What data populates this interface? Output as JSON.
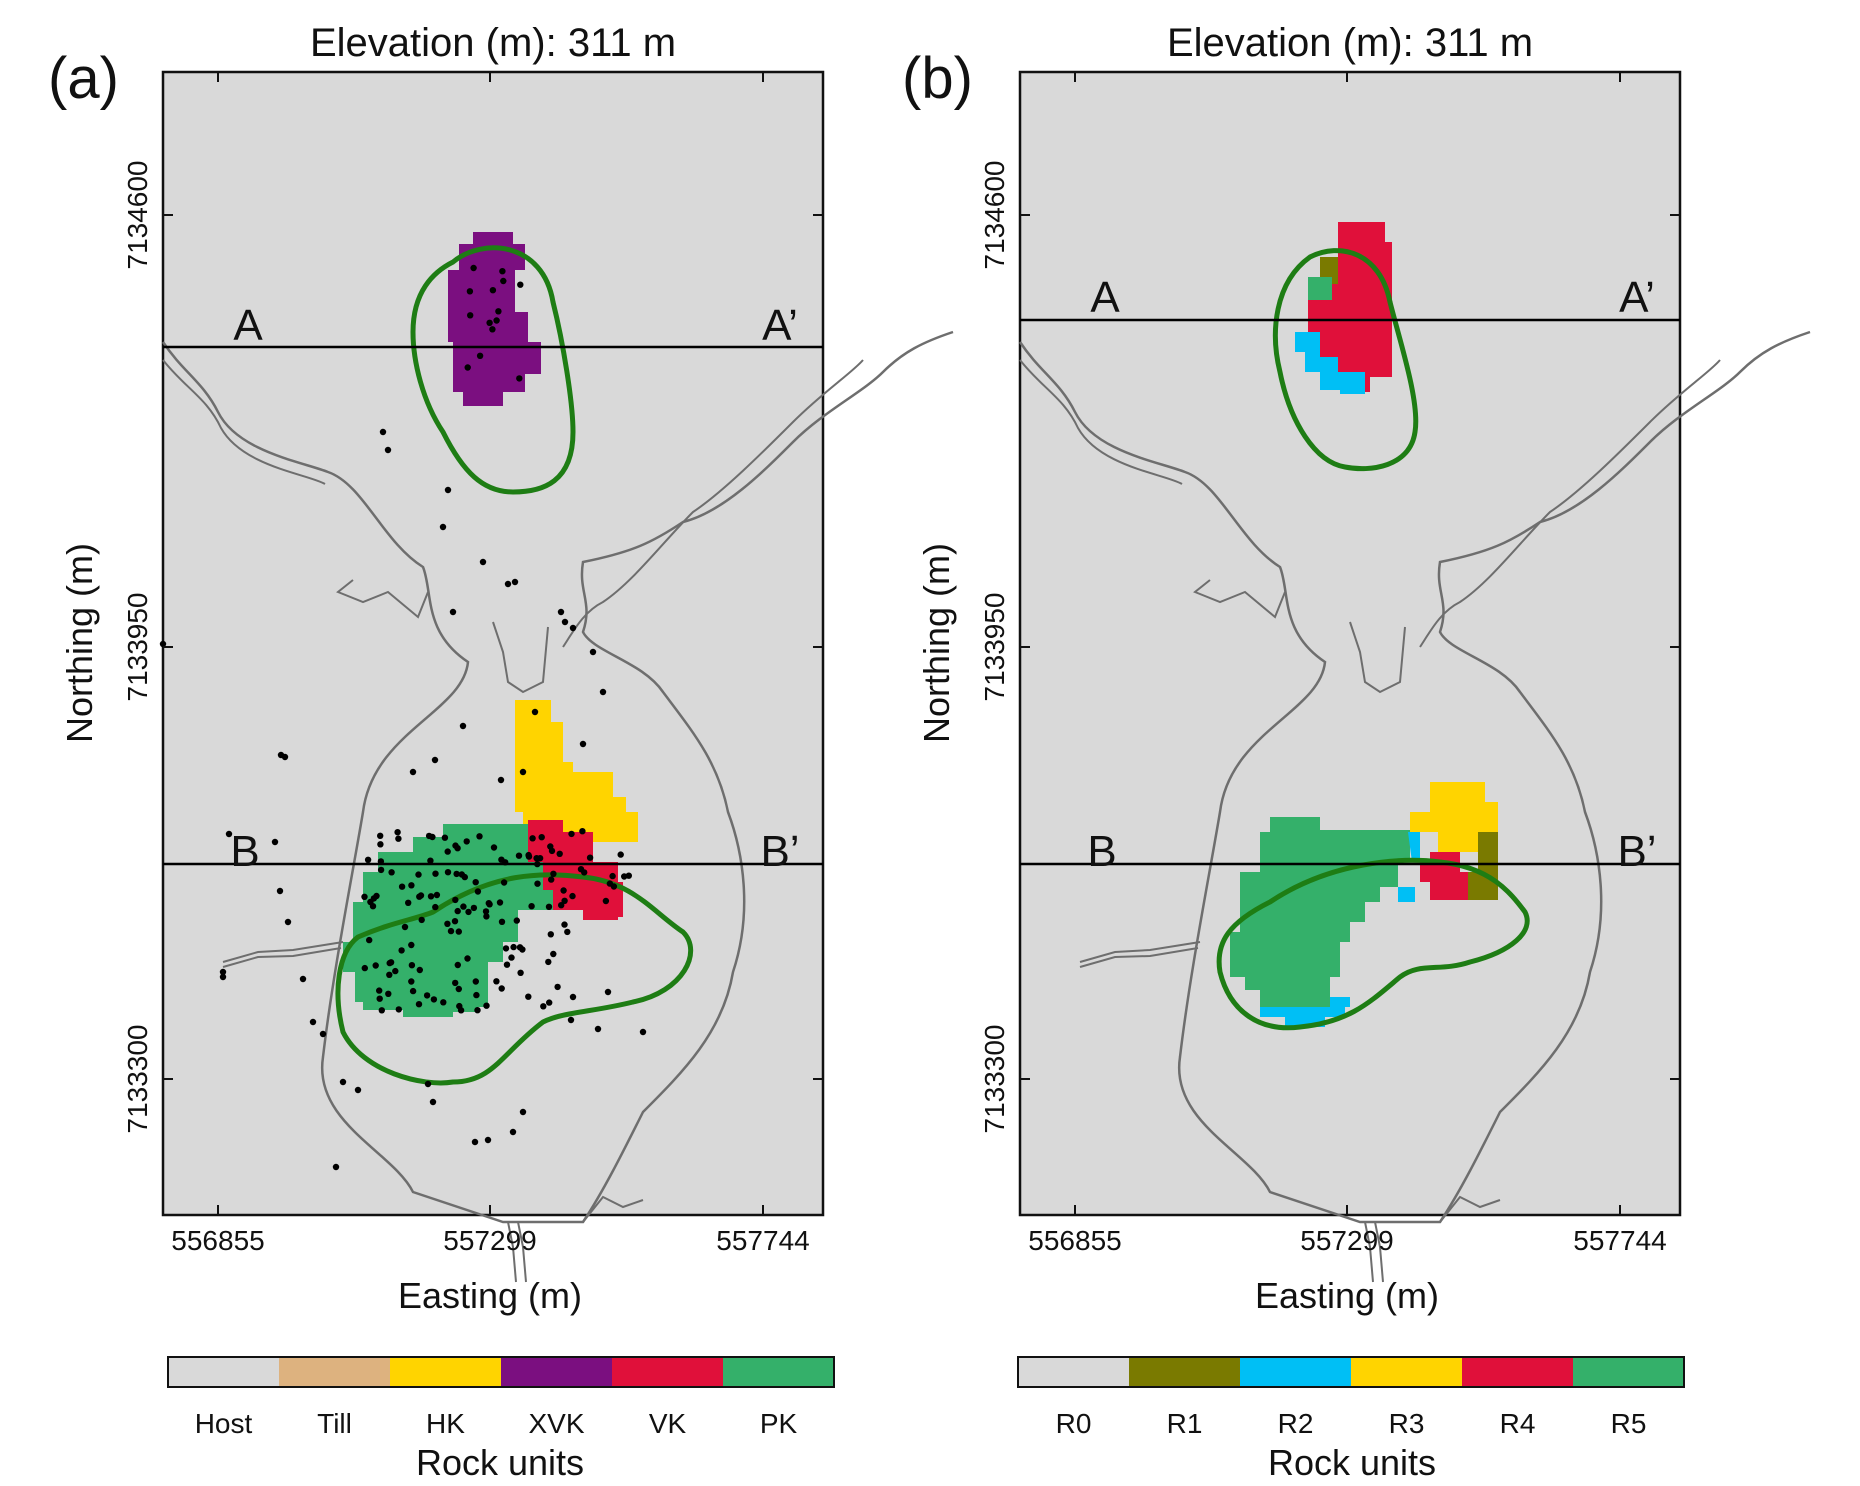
{
  "panels": [
    {
      "id": "a",
      "panel_label": "(a)",
      "title": "Elevation (m): 311 m",
      "xlabel": "Easting (m)",
      "ylabel": "Northing (m)",
      "x_ticks": [
        "556855",
        "557299",
        "557744"
      ],
      "y_ticks": [
        "7134600",
        "7133950",
        "7133300"
      ],
      "section_labels": {
        "a_left": "A",
        "a_right": "A’",
        "b_left": "B",
        "b_right": "B’"
      },
      "legend_title": "Rock units",
      "legend_items": [
        {
          "label": "Host",
          "color": "#d9d9d9"
        },
        {
          "label": "Till",
          "color": "#ddb27f"
        },
        {
          "label": "HK",
          "color": "#ffd400"
        },
        {
          "label": "XVK",
          "color": "#7b0f80"
        },
        {
          "label": "VK",
          "color": "#e0103a"
        },
        {
          "label": "PK",
          "color": "#34b06a"
        }
      ]
    },
    {
      "id": "b",
      "panel_label": "(b)",
      "title": "Elevation (m): 311 m",
      "xlabel": "Easting (m)",
      "ylabel": "Northing (m)",
      "x_ticks": [
        "556855",
        "557299",
        "557744"
      ],
      "y_ticks": [
        "7134600",
        "7133950",
        "7133300"
      ],
      "section_labels": {
        "a_left": "A",
        "a_right": "A’",
        "b_left": "B",
        "b_right": "B’"
      },
      "legend_title": "Rock units",
      "legend_items": [
        {
          "label": "R0",
          "color": "#d9d9d9"
        },
        {
          "label": "R1",
          "color": "#7a7a00"
        },
        {
          "label": "R2",
          "color": "#00bff5"
        },
        {
          "label": "R3",
          "color": "#ffd400"
        },
        {
          "label": "R4",
          "color": "#e0103a"
        },
        {
          "label": "R5",
          "color": "#34b06a"
        }
      ]
    }
  ],
  "colors": {
    "map_background": "#d9d9d9",
    "pipe_outline": "#1e7d14",
    "river_outline": "#6e6e6e",
    "section_line": "#000000",
    "drill_points": "#000000"
  }
}
